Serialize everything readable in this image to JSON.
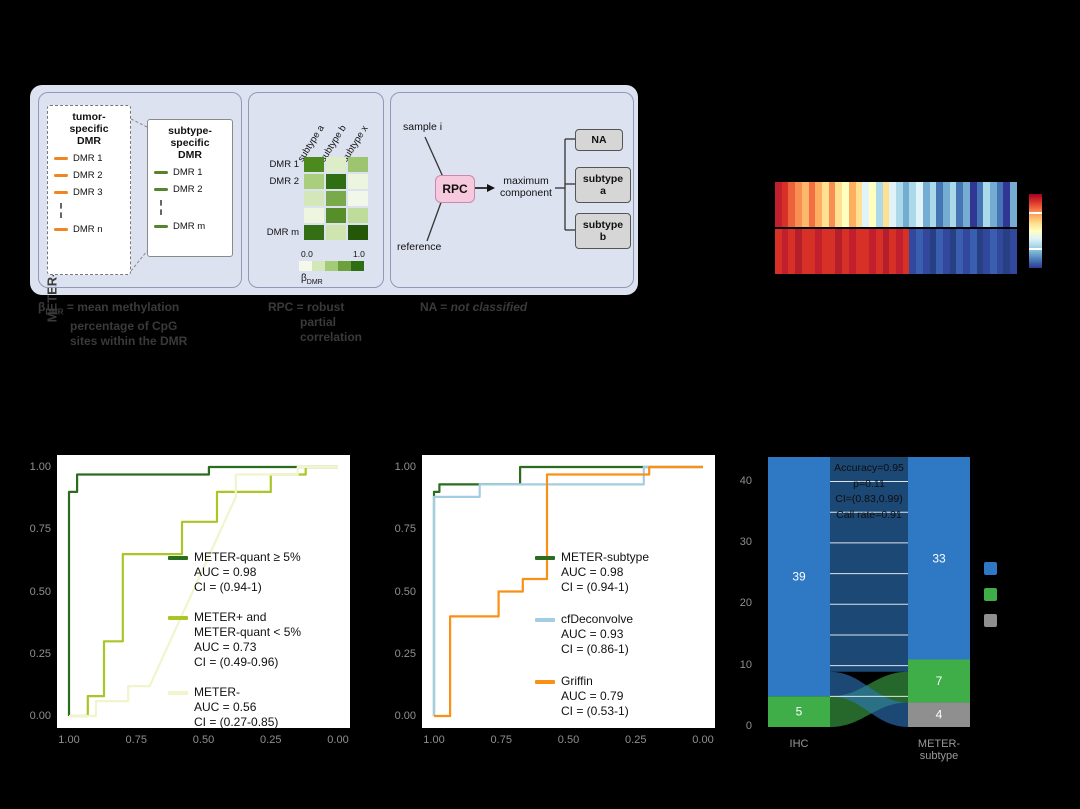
{
  "panelA": {
    "side_label": "METER-subtype",
    "tumor_box": {
      "title_lines": [
        "tumor-",
        "specific",
        "DMR"
      ],
      "items": [
        "DMR 1",
        "DMR 2",
        "DMR 3"
      ],
      "last_item": "DMR n"
    },
    "subtype_box": {
      "title_lines": [
        "subtype-",
        "specific",
        "DMR"
      ],
      "items": [
        "DMR 1",
        "DMR 2"
      ],
      "last_item": "DMR m"
    },
    "mini_heatmap": {
      "col_labels": [
        "subtype a",
        "subtype b",
        "subtype x"
      ],
      "row_labels": [
        "DMR 1",
        "DMR 2",
        "",
        "",
        "DMR m"
      ],
      "cells": [
        [
          "#4c8a1f",
          "#ddedc8",
          "#9dc56f"
        ],
        [
          "#a9cf7d",
          "#2f6e12",
          "#ecf5de"
        ],
        [
          "#d3e7b8",
          "#78a94b",
          "#f2f8e9"
        ],
        [
          "#eef6e0",
          "#568f2a",
          "#bfdc9a"
        ],
        [
          "#356f14",
          "#cfe4ae",
          "#245708"
        ]
      ],
      "scale_min": "0.0",
      "scale_max": "1.0",
      "scale_colors": [
        "#f4f9ec",
        "#d3e7b8",
        "#a4cc78",
        "#6ba03c",
        "#2f6e12"
      ],
      "scale_label_base": "β",
      "scale_label_sub": "DMR"
    },
    "flow": {
      "sample_label": "sample i",
      "reference_label": "reference",
      "rpc_label": "RPC",
      "max_lines": [
        "maximum",
        "component"
      ],
      "outputs": [
        {
          "lines": [
            "NA"
          ]
        },
        {
          "lines": [
            "subtype",
            "a"
          ]
        },
        {
          "lines": [
            "subtype",
            "b"
          ]
        }
      ]
    },
    "footnotes": {
      "beta": {
        "sym": "β",
        "sub": "DMR",
        "line1_rest": " = mean methylation",
        "line2": "percentage of CpG",
        "line3": "sites within the DMR"
      },
      "rpc": {
        "bold": "RPC",
        "line1_rest": " = robust",
        "line2": "partial",
        "line3": "correlation"
      },
      "na": {
        "bold": "NA",
        "eq": " = ",
        "italic": "not classified"
      }
    }
  },
  "panelB": {
    "rows": [
      [
        "#c21f2e",
        "#d73027",
        "#ee613d",
        "#f98e52",
        "#fdb96b",
        "#f46d43",
        "#fdae61",
        "#fee090",
        "#f98e52",
        "#fee090",
        "#ffffbf",
        "#fdae61",
        "#fee090",
        "#e0f3f8",
        "#ffffbf",
        "#abd9e9",
        "#fee090",
        "#e0f3f8",
        "#abd9e9",
        "#74add1",
        "#abd9e9",
        "#e0f3f8",
        "#74add1",
        "#abd9e9",
        "#4575b4",
        "#74add1",
        "#abd9e9",
        "#4575b4",
        "#74add1",
        "#313695",
        "#4575b4",
        "#abd9e9",
        "#74add1",
        "#4575b4",
        "#313695",
        "#74add1"
      ],
      [
        "#d73027",
        "#c21f2e",
        "#d73027",
        "#b51f2b",
        "#d73027",
        "#d73027",
        "#c21f2e",
        "#d73027",
        "#d73027",
        "#b51f2b",
        "#d73027",
        "#c21f2e",
        "#d73027",
        "#d73027",
        "#c21f2e",
        "#d73027",
        "#b51f2b",
        "#d73027",
        "#c21f2e",
        "#d73027",
        "#31489c",
        "#3a5fb0",
        "#31489c",
        "#274084",
        "#3a5fb0",
        "#31489c",
        "#274084",
        "#3a5fb0",
        "#31489c",
        "#3a5fb0",
        "#274084",
        "#31489c",
        "#3a5fb0",
        "#31489c",
        "#274084",
        "#31489c"
      ]
    ],
    "colorbar_colors": [
      "#a50026",
      "#d73027",
      "#f46d43",
      "#fdae61",
      "#fee090",
      "#ffffbf",
      "#e0f3f8",
      "#abd9e9",
      "#74add1",
      "#4575b4",
      "#313695"
    ]
  },
  "panelC": {
    "legend": [
      {
        "color": "#2a6d1f",
        "lines": [
          "METER-quant ≥ 5%",
          "AUC = 0.98",
          "CI = (0.94-1)"
        ]
      },
      {
        "color": "#a8c626",
        "lines": [
          "METER+ and",
          "METER-quant < 5%",
          "AUC = 0.73",
          "CI = (0.49-0.96)"
        ]
      },
      {
        "color": "#f2f4cd",
        "lines": [
          "METER-",
          "AUC = 0.56",
          "CI = (0.27-0.85)"
        ]
      }
    ]
  },
  "panelD": {
    "legend": [
      {
        "color": "#2a6d1f",
        "lines": [
          "METER-subtype",
          "AUC = 0.98",
          "CI = (0.94-1)"
        ]
      },
      {
        "color": "#a3cde3",
        "lines": [
          "cfDeconvolve",
          "AUC = 0.93",
          "CI = (0.86-1)"
        ]
      },
      {
        "color": "#fa9016",
        "lines": [
          "Griffin",
          "AUC = 0.79",
          "CI = (0.53-1)"
        ]
      }
    ]
  },
  "panelE": {
    "annotations": [
      "Accuracy=0.95",
      "p=0.11",
      "CI=(0.83,0.99)",
      "Call rate=0.91"
    ],
    "y_ticks": [
      "0",
      "10",
      "20",
      "30",
      "40"
    ],
    "x_labels": {
      "left": "IHC",
      "right_lines": [
        "METER-",
        "subtype"
      ]
    },
    "colors": {
      "blue": "#2f78c3",
      "green": "#3fae49",
      "gray": "#8f8f8f"
    },
    "left_segments": [
      {
        "value": 39,
        "label": "39",
        "color": "blue"
      },
      {
        "value": 5,
        "label": "5",
        "color": "green"
      }
    ],
    "right_segments": [
      {
        "value": 33,
        "label": "33",
        "color": "blue"
      },
      {
        "value": 7,
        "label": "7",
        "color": "green"
      },
      {
        "value": 4,
        "label": "4",
        "color": "gray"
      }
    ]
  },
  "chart_data": [
    {
      "id": "roc_meter_quant",
      "type": "line",
      "x_ticks": [
        "1.00",
        "0.75",
        "0.50",
        "0.25",
        "0.00"
      ],
      "y_ticks": [
        "1.00",
        "0.75",
        "0.50",
        "0.25",
        "0.00"
      ],
      "series": [
        {
          "name": "METER-quant ≥ 5%",
          "auc": 0.98,
          "ci": "(0.94-1)",
          "color": "#2a6d1f",
          "points": [
            [
              0,
              0
            ],
            [
              0,
              0.9
            ],
            [
              0.03,
              0.9
            ],
            [
              0.03,
              0.97
            ],
            [
              0.52,
              0.97
            ],
            [
              0.52,
              1
            ],
            [
              1,
              1
            ]
          ]
        },
        {
          "name": "METER+ and METER-quant < 5%",
          "auc": 0.73,
          "ci": "(0.49-0.96)",
          "color": "#a8c626",
          "points": [
            [
              0,
              0
            ],
            [
              0.07,
              0
            ],
            [
              0.07,
              0.08
            ],
            [
              0.13,
              0.08
            ],
            [
              0.13,
              0.3
            ],
            [
              0.2,
              0.3
            ],
            [
              0.2,
              0.65
            ],
            [
              0.42,
              0.65
            ],
            [
              0.42,
              0.78
            ],
            [
              0.55,
              0.78
            ],
            [
              0.55,
              0.9
            ],
            [
              0.75,
              0.9
            ],
            [
              0.75,
              0.97
            ],
            [
              0.88,
              0.97
            ],
            [
              0.88,
              1
            ],
            [
              1,
              1
            ]
          ]
        },
        {
          "name": "METER-",
          "auc": 0.56,
          "ci": "(0.27-0.85)",
          "color": "#f2f4cd",
          "points": [
            [
              0,
              0
            ],
            [
              0.1,
              0
            ],
            [
              0.1,
              0.06
            ],
            [
              0.22,
              0.06
            ],
            [
              0.22,
              0.12
            ],
            [
              0.3,
              0.12
            ],
            [
              0.62,
              0.88
            ],
            [
              0.62,
              0.97
            ],
            [
              0.85,
              0.97
            ],
            [
              0.85,
              1
            ],
            [
              1,
              1
            ]
          ]
        }
      ]
    },
    {
      "id": "roc_methods",
      "type": "line",
      "x_ticks": [
        "1.00",
        "0.75",
        "0.50",
        "0.25",
        "0.00"
      ],
      "y_ticks": [
        "1.00",
        "0.75",
        "0.50",
        "0.25",
        "0.00"
      ],
      "series": [
        {
          "name": "METER-subtype",
          "auc": 0.98,
          "ci": "(0.94-1)",
          "color": "#2a6d1f",
          "points": [
            [
              0,
              0
            ],
            [
              0,
              0.9
            ],
            [
              0.02,
              0.9
            ],
            [
              0.02,
              0.93
            ],
            [
              0.32,
              0.93
            ],
            [
              0.32,
              1
            ],
            [
              1,
              1
            ]
          ]
        },
        {
          "name": "cfDeconvolve",
          "auc": 0.93,
          "ci": "(0.86-1)",
          "color": "#a3cde3",
          "points": [
            [
              0,
              0
            ],
            [
              0,
              0.88
            ],
            [
              0.17,
              0.88
            ],
            [
              0.17,
              0.93
            ],
            [
              0.78,
              0.93
            ],
            [
              0.78,
              1
            ],
            [
              1,
              1
            ]
          ]
        },
        {
          "name": "Griffin",
          "auc": 0.79,
          "ci": "(0.53-1)",
          "color": "#fa9016",
          "points": [
            [
              0,
              0
            ],
            [
              0.06,
              0
            ],
            [
              0.06,
              0.4
            ],
            [
              0.24,
              0.4
            ],
            [
              0.24,
              0.5
            ],
            [
              0.33,
              0.5
            ],
            [
              0.33,
              0.55
            ],
            [
              0.42,
              0.55
            ],
            [
              0.42,
              0.97
            ],
            [
              0.8,
              0.97
            ],
            [
              0.8,
              1
            ],
            [
              1,
              1
            ]
          ]
        }
      ]
    },
    {
      "id": "alluvial",
      "type": "alluvial",
      "ymax": 44,
      "flows": [
        {
          "color": "blue",
          "from": [
            11,
            44
          ],
          "to": [
            11,
            44
          ]
        },
        {
          "color": "blue",
          "from": [
            9,
            11
          ],
          "to": [
            9,
            11
          ]
        },
        {
          "color": "green",
          "from": [
            0,
            5
          ],
          "to": [
            4,
            9
          ]
        },
        {
          "color": "blue",
          "from": [
            5,
            9
          ],
          "to": [
            0,
            4
          ]
        }
      ]
    }
  ]
}
